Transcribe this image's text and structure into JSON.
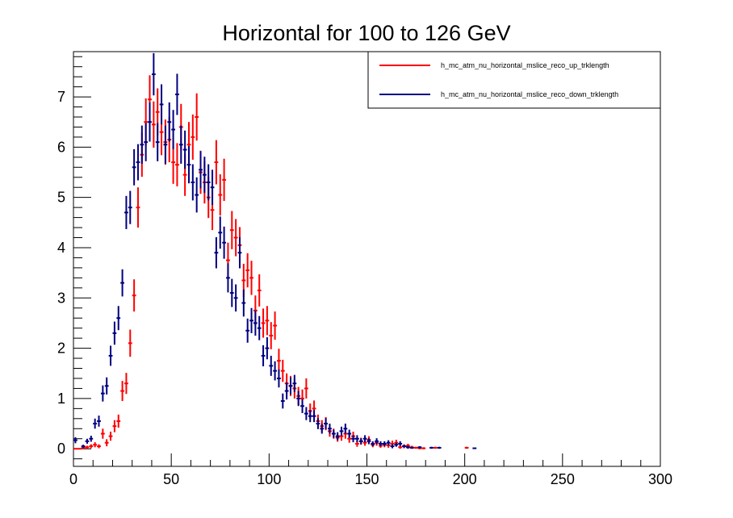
{
  "chart_data": {
    "type": "scatter",
    "title": "Horizontal for 100 to 126 GeV",
    "xlabel": "",
    "ylabel": "",
    "xlim": [
      0,
      300
    ],
    "ylim": [
      -0.35,
      7.9
    ],
    "x_ticks": [
      0,
      50,
      100,
      150,
      200,
      250,
      300
    ],
    "y_ticks": [
      0,
      1,
      2,
      3,
      4,
      5,
      6,
      7
    ],
    "x_tick_labels": [
      "0",
      "50",
      "100",
      "150",
      "200",
      "250",
      "300"
    ],
    "y_tick_labels": [
      "0",
      "1",
      "2",
      "3",
      "4",
      "5",
      "6",
      "7"
    ],
    "grid": false,
    "legend_position": "top-right",
    "series": [
      {
        "name": "h_mc_atm_nu_horizontal_mslice_reco_up_trklength",
        "color": "#ff0000",
        "x": [
          1,
          3,
          5,
          7,
          9,
          11,
          13,
          15,
          17,
          19,
          21,
          23,
          25,
          27,
          29,
          31,
          33,
          35,
          37,
          39,
          41,
          43,
          45,
          47,
          49,
          51,
          53,
          55,
          57,
          59,
          61,
          63,
          65,
          67,
          69,
          71,
          73,
          75,
          77,
          79,
          81,
          83,
          85,
          87,
          89,
          91,
          93,
          95,
          97,
          99,
          101,
          103,
          105,
          107,
          109,
          111,
          113,
          115,
          117,
          119,
          121,
          123,
          125,
          127,
          129,
          131,
          133,
          135,
          137,
          139,
          141,
          143,
          145,
          147,
          149,
          151,
          153,
          155,
          157,
          159,
          161,
          163,
          165,
          167,
          169,
          171,
          173,
          175,
          177,
          179,
          185,
          201
        ],
        "y": [
          0.0,
          0.0,
          0.02,
          0.03,
          0.05,
          0.08,
          0.05,
          0.3,
          0.12,
          0.25,
          0.45,
          0.55,
          1.15,
          1.3,
          2.1,
          3.05,
          4.8,
          5.85,
          6.5,
          6.95,
          6.45,
          6.7,
          6.3,
          6.1,
          6.15,
          5.7,
          5.65,
          6.4,
          5.45,
          6.05,
          6.2,
          6.6,
          5.5,
          5.3,
          5.0,
          4.75,
          5.7,
          5.05,
          5.35,
          3.75,
          4.35,
          4.2,
          4.05,
          3.35,
          3.55,
          3.4,
          2.75,
          3.15,
          2.5,
          2.55,
          2.25,
          2.45,
          1.75,
          1.55,
          1.3,
          1.25,
          1.2,
          1.05,
          1.0,
          1.2,
          0.75,
          0.8,
          0.55,
          0.45,
          0.5,
          0.35,
          0.3,
          0.22,
          0.25,
          0.3,
          0.2,
          0.25,
          0.1,
          0.15,
          0.12,
          0.18,
          0.08,
          0.12,
          0.06,
          0.08,
          0.07,
          0.1,
          0.12,
          0.03,
          0.05,
          0.06,
          0.03,
          0.02,
          0.01,
          0.01,
          0.02,
          0.02
        ],
        "yerr": [
          0,
          0,
          0.03,
          0.03,
          0.04,
          0.05,
          0.04,
          0.1,
          0.07,
          0.09,
          0.12,
          0.13,
          0.2,
          0.21,
          0.27,
          0.32,
          0.4,
          0.44,
          0.47,
          0.48,
          0.46,
          0.47,
          0.46,
          0.45,
          0.45,
          0.43,
          0.43,
          0.46,
          0.42,
          0.45,
          0.45,
          0.47,
          0.43,
          0.42,
          0.41,
          0.4,
          0.44,
          0.41,
          0.42,
          0.35,
          0.38,
          0.37,
          0.36,
          0.33,
          0.34,
          0.34,
          0.3,
          0.32,
          0.29,
          0.29,
          0.27,
          0.28,
          0.24,
          0.22,
          0.2,
          0.2,
          0.2,
          0.18,
          0.18,
          0.2,
          0.15,
          0.16,
          0.13,
          0.12,
          0.13,
          0.11,
          0.1,
          0.08,
          0.09,
          0.1,
          0.08,
          0.09,
          0.06,
          0.07,
          0.06,
          0.07,
          0.05,
          0.06,
          0.04,
          0.05,
          0.05,
          0.06,
          0.06,
          0.03,
          0.04,
          0.04,
          0.03,
          0.02,
          0.02,
          0.02,
          0.02,
          0.02
        ]
      },
      {
        "name": "h_mc_atm_nu_horizontal_mslice_reco_down_trklength",
        "color": "#000080",
        "x": [
          1,
          5,
          7,
          9,
          11,
          13,
          15,
          17,
          19,
          21,
          23,
          25,
          27,
          29,
          31,
          33,
          35,
          37,
          39,
          41,
          43,
          45,
          47,
          49,
          51,
          53,
          55,
          57,
          59,
          61,
          63,
          65,
          67,
          69,
          71,
          73,
          75,
          77,
          79,
          81,
          83,
          85,
          87,
          89,
          91,
          93,
          95,
          97,
          99,
          101,
          103,
          105,
          107,
          109,
          111,
          113,
          115,
          117,
          119,
          121,
          123,
          125,
          127,
          129,
          131,
          133,
          135,
          137,
          139,
          141,
          143,
          145,
          147,
          149,
          151,
          153,
          155,
          157,
          159,
          161,
          163,
          165,
          167,
          169,
          171,
          173,
          177,
          183,
          187,
          205
        ],
        "y": [
          0.17,
          0.05,
          0.15,
          0.2,
          0.5,
          0.55,
          1.1,
          1.25,
          1.85,
          2.3,
          2.6,
          3.3,
          4.7,
          4.8,
          5.6,
          5.7,
          6.05,
          6.1,
          6.5,
          7.45,
          6.1,
          6.85,
          6.05,
          6.5,
          6.35,
          7.05,
          6.05,
          5.95,
          5.65,
          5.3,
          5.05,
          5.55,
          5.45,
          5.3,
          5.2,
          3.9,
          4.3,
          4.1,
          3.4,
          3.1,
          3.0,
          3.9,
          2.9,
          2.35,
          2.55,
          2.5,
          2.4,
          1.85,
          2.0,
          1.65,
          1.55,
          1.4,
          0.95,
          1.15,
          1.25,
          1.3,
          1.0,
          0.85,
          0.7,
          0.65,
          0.65,
          0.5,
          0.4,
          0.5,
          0.4,
          0.3,
          0.25,
          0.35,
          0.4,
          0.3,
          0.2,
          0.2,
          0.15,
          0.2,
          0.15,
          0.1,
          0.15,
          0.1,
          0.1,
          0.12,
          0.05,
          0.08,
          0.1,
          0.05,
          0.03,
          0.02,
          0.03,
          0.02,
          0.02,
          0.01
        ],
        "yerr": [
          0.06,
          0.03,
          0.05,
          0.06,
          0.1,
          0.11,
          0.16,
          0.17,
          0.2,
          0.23,
          0.24,
          0.27,
          0.33,
          0.33,
          0.36,
          0.36,
          0.38,
          0.38,
          0.39,
          0.42,
          0.38,
          0.4,
          0.38,
          0.39,
          0.39,
          0.41,
          0.38,
          0.38,
          0.37,
          0.36,
          0.35,
          0.37,
          0.36,
          0.36,
          0.35,
          0.31,
          0.32,
          0.32,
          0.29,
          0.28,
          0.27,
          0.31,
          0.27,
          0.24,
          0.25,
          0.25,
          0.24,
          0.21,
          0.22,
          0.2,
          0.19,
          0.18,
          0.15,
          0.17,
          0.17,
          0.17,
          0.15,
          0.14,
          0.13,
          0.12,
          0.12,
          0.11,
          0.1,
          0.11,
          0.1,
          0.08,
          0.08,
          0.09,
          0.1,
          0.08,
          0.07,
          0.07,
          0.06,
          0.07,
          0.06,
          0.05,
          0.06,
          0.05,
          0.05,
          0.05,
          0.04,
          0.04,
          0.05,
          0.03,
          0.03,
          0.02,
          0.02,
          0.02,
          0.02,
          0.01
        ]
      }
    ]
  }
}
